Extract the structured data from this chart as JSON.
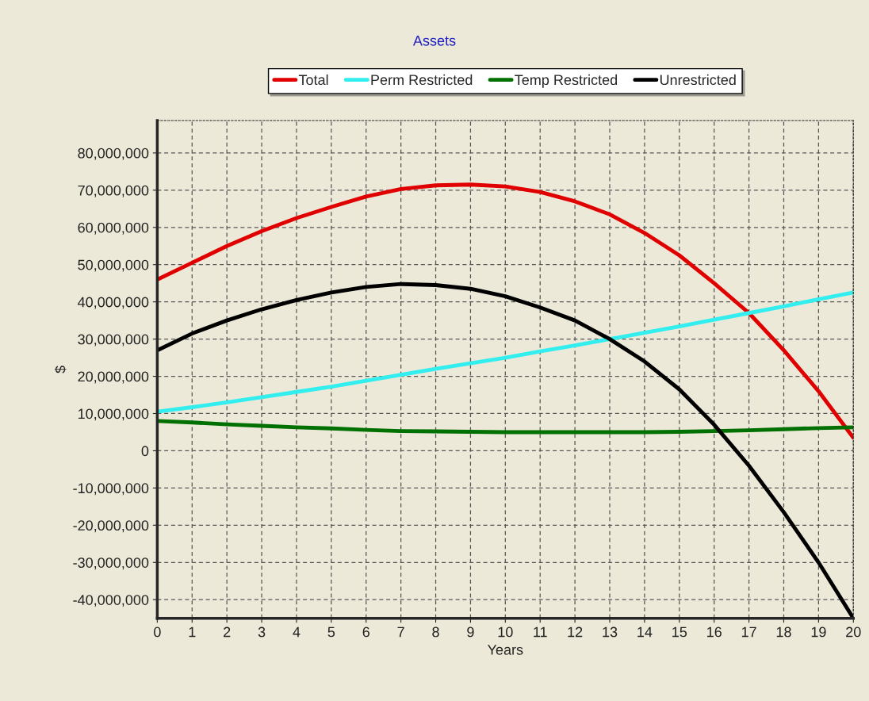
{
  "chart_data": {
    "type": "line",
    "title": "Assets",
    "xlabel": "Years",
    "ylabel": "$",
    "x": [
      0,
      1,
      2,
      3,
      4,
      5,
      6,
      7,
      8,
      9,
      10,
      11,
      12,
      13,
      14,
      15,
      16,
      17,
      18,
      19,
      20
    ],
    "series": [
      {
        "name": "Total",
        "color": "#e00000",
        "values": [
          46000000,
          50500000,
          55000000,
          59000000,
          62500000,
          65500000,
          68300000,
          70300000,
          71300000,
          71500000,
          71000000,
          69500000,
          67000000,
          63500000,
          58500000,
          52500000,
          45000000,
          37000000,
          27000000,
          16000000,
          3500000
        ]
      },
      {
        "name": "Perm Restricted",
        "color": "#33eeee",
        "values": [
          10500000,
          11700000,
          13000000,
          14400000,
          15800000,
          17200000,
          18800000,
          20400000,
          22000000,
          23500000,
          25000000,
          26700000,
          28300000,
          30000000,
          31700000,
          33400000,
          35200000,
          37000000,
          38800000,
          40700000,
          42500000
        ]
      },
      {
        "name": "Temp Restricted",
        "color": "#007000",
        "values": [
          8000000,
          7600000,
          7100000,
          6700000,
          6300000,
          6000000,
          5600000,
          5300000,
          5200000,
          5100000,
          5000000,
          5000000,
          5000000,
          5000000,
          5000000,
          5100000,
          5300000,
          5500000,
          5800000,
          6100000,
          6300000
        ]
      },
      {
        "name": "Unrestricted",
        "color": "#000000",
        "values": [
          27000000,
          31500000,
          35000000,
          38000000,
          40500000,
          42500000,
          44000000,
          44800000,
          44500000,
          43500000,
          41500000,
          38500000,
          35000000,
          30000000,
          24000000,
          16500000,
          7000000,
          -4000000,
          -16500000,
          -30000000,
          -45000000
        ]
      }
    ],
    "xlim": [
      0,
      20
    ],
    "xticks": [
      0,
      1,
      2,
      3,
      4,
      5,
      6,
      7,
      8,
      9,
      10,
      11,
      12,
      13,
      14,
      15,
      16,
      17,
      18,
      19,
      20
    ],
    "ylim": [
      -45000000,
      88700000
    ],
    "yticks": [
      {
        "value": -40000000,
        "label": "-40,000,000"
      },
      {
        "value": -30000000,
        "label": "-30,000,000"
      },
      {
        "value": -20000000,
        "label": "-20,000,000"
      },
      {
        "value": -10000000,
        "label": "-10,000,000"
      },
      {
        "value": 0,
        "label": "0"
      },
      {
        "value": 10000000,
        "label": "10,000,000"
      },
      {
        "value": 20000000,
        "label": "20,000,000"
      },
      {
        "value": 30000000,
        "label": "30,000,000"
      },
      {
        "value": 40000000,
        "label": "40,000,000"
      },
      {
        "value": 50000000,
        "label": "50,000,000"
      },
      {
        "value": 60000000,
        "label": "60,000,000"
      },
      {
        "value": 70000000,
        "label": "70,000,000"
      },
      {
        "value": 80000000,
        "label": "80,000,000"
      }
    ],
    "grid": true,
    "legend": "top",
    "line_style": "solid",
    "marker": "none"
  }
}
